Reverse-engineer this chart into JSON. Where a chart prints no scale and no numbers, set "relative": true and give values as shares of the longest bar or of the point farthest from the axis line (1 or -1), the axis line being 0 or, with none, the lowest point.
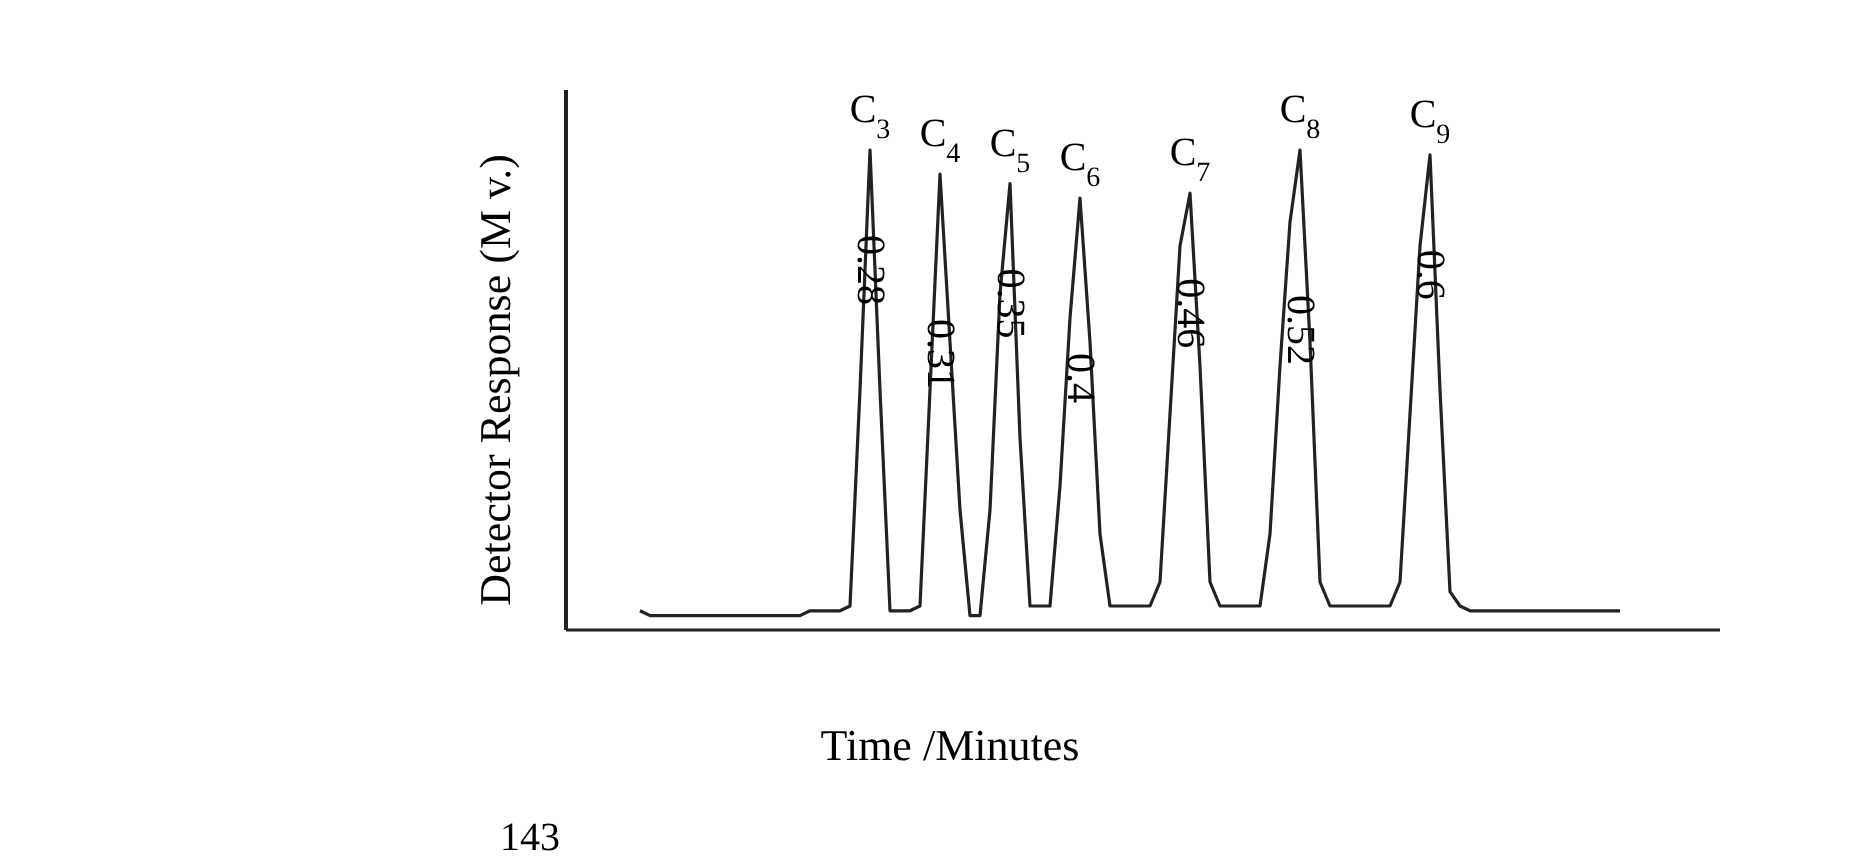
{
  "chart_data": {
    "type": "line",
    "relative": true,
    "xlabel": "Time /Minutes",
    "ylabel": "Detector Response (M v.)",
    "color": "#222222",
    "marker": "none",
    "line_style": "solid",
    "categories": [
      null,
      null,
      null,
      null,
      null,
      null,
      null,
      null,
      null,
      null,
      null,
      null,
      null,
      null,
      null,
      null,
      null,
      null,
      null,
      null,
      null,
      null,
      null,
      null,
      null,
      null,
      null,
      null,
      null,
      null,
      null,
      null,
      null,
      null,
      null,
      null,
      null,
      null,
      null,
      null,
      null,
      null,
      null,
      null,
      null,
      null,
      null,
      null,
      null,
      null,
      null,
      null,
      null,
      null,
      null,
      null,
      null,
      null,
      null,
      null,
      null,
      null,
      null,
      null,
      null,
      null,
      null,
      null,
      null,
      null,
      null,
      null,
      null,
      null,
      null,
      null,
      null,
      null,
      null,
      null,
      null,
      null,
      null,
      null,
      null,
      null,
      null,
      null,
      null,
      null,
      null,
      null,
      null,
      null,
      null,
      null,
      null,
      null,
      null
    ],
    "values": [
      0.04,
      0.03,
      0.03,
      0.03,
      0.03,
      0.03,
      0.03,
      0.03,
      0.03,
      0.03,
      0.03,
      0.03,
      0.03,
      0.03,
      0.03,
      0.03,
      0.03,
      0.04,
      0.04,
      0.04,
      0.04,
      0.05,
      0.5,
      1,
      0.5,
      0.04,
      0.04,
      0.04,
      0.05,
      0.5,
      0.95,
      0.6,
      0.25,
      0.03,
      0.03,
      0.25,
      0.7,
      0.93,
      0.4,
      0.05,
      0.05,
      0.05,
      0.3,
      0.65,
      0.9,
      0.6,
      0.2,
      0.05,
      0.05,
      0.05,
      0.05,
      0.05,
      0.1,
      0.45,
      0.8,
      0.91,
      0.55,
      0.1,
      0.05,
      0.05,
      0.05,
      0.05,
      0.05,
      0.2,
      0.55,
      0.85,
      1,
      0.6,
      0.1,
      0.05,
      0.05,
      0.05,
      0.05,
      0.05,
      0.05,
      0.05,
      0.1,
      0.45,
      0.8,
      0.99,
      0.5,
      0.08,
      0.05,
      0.04,
      0.04,
      0.04,
      0.04,
      0.04,
      0.04,
      0.04,
      0.04,
      0.04,
      0.04,
      0.04,
      0.04,
      0.04,
      0.04,
      0.04,
      0.04
    ],
    "annotations": [
      "C$_{3}$",
      "0.28",
      "C$_{4}$",
      "0.31",
      "C$_{5}$",
      "0.35",
      "C$_{6}$",
      "0.4",
      "C$_{7}$",
      "0.46",
      "C$_{8}$",
      "0.52",
      "C$_{9}$",
      "0.6",
      "143"
    ]
  }
}
